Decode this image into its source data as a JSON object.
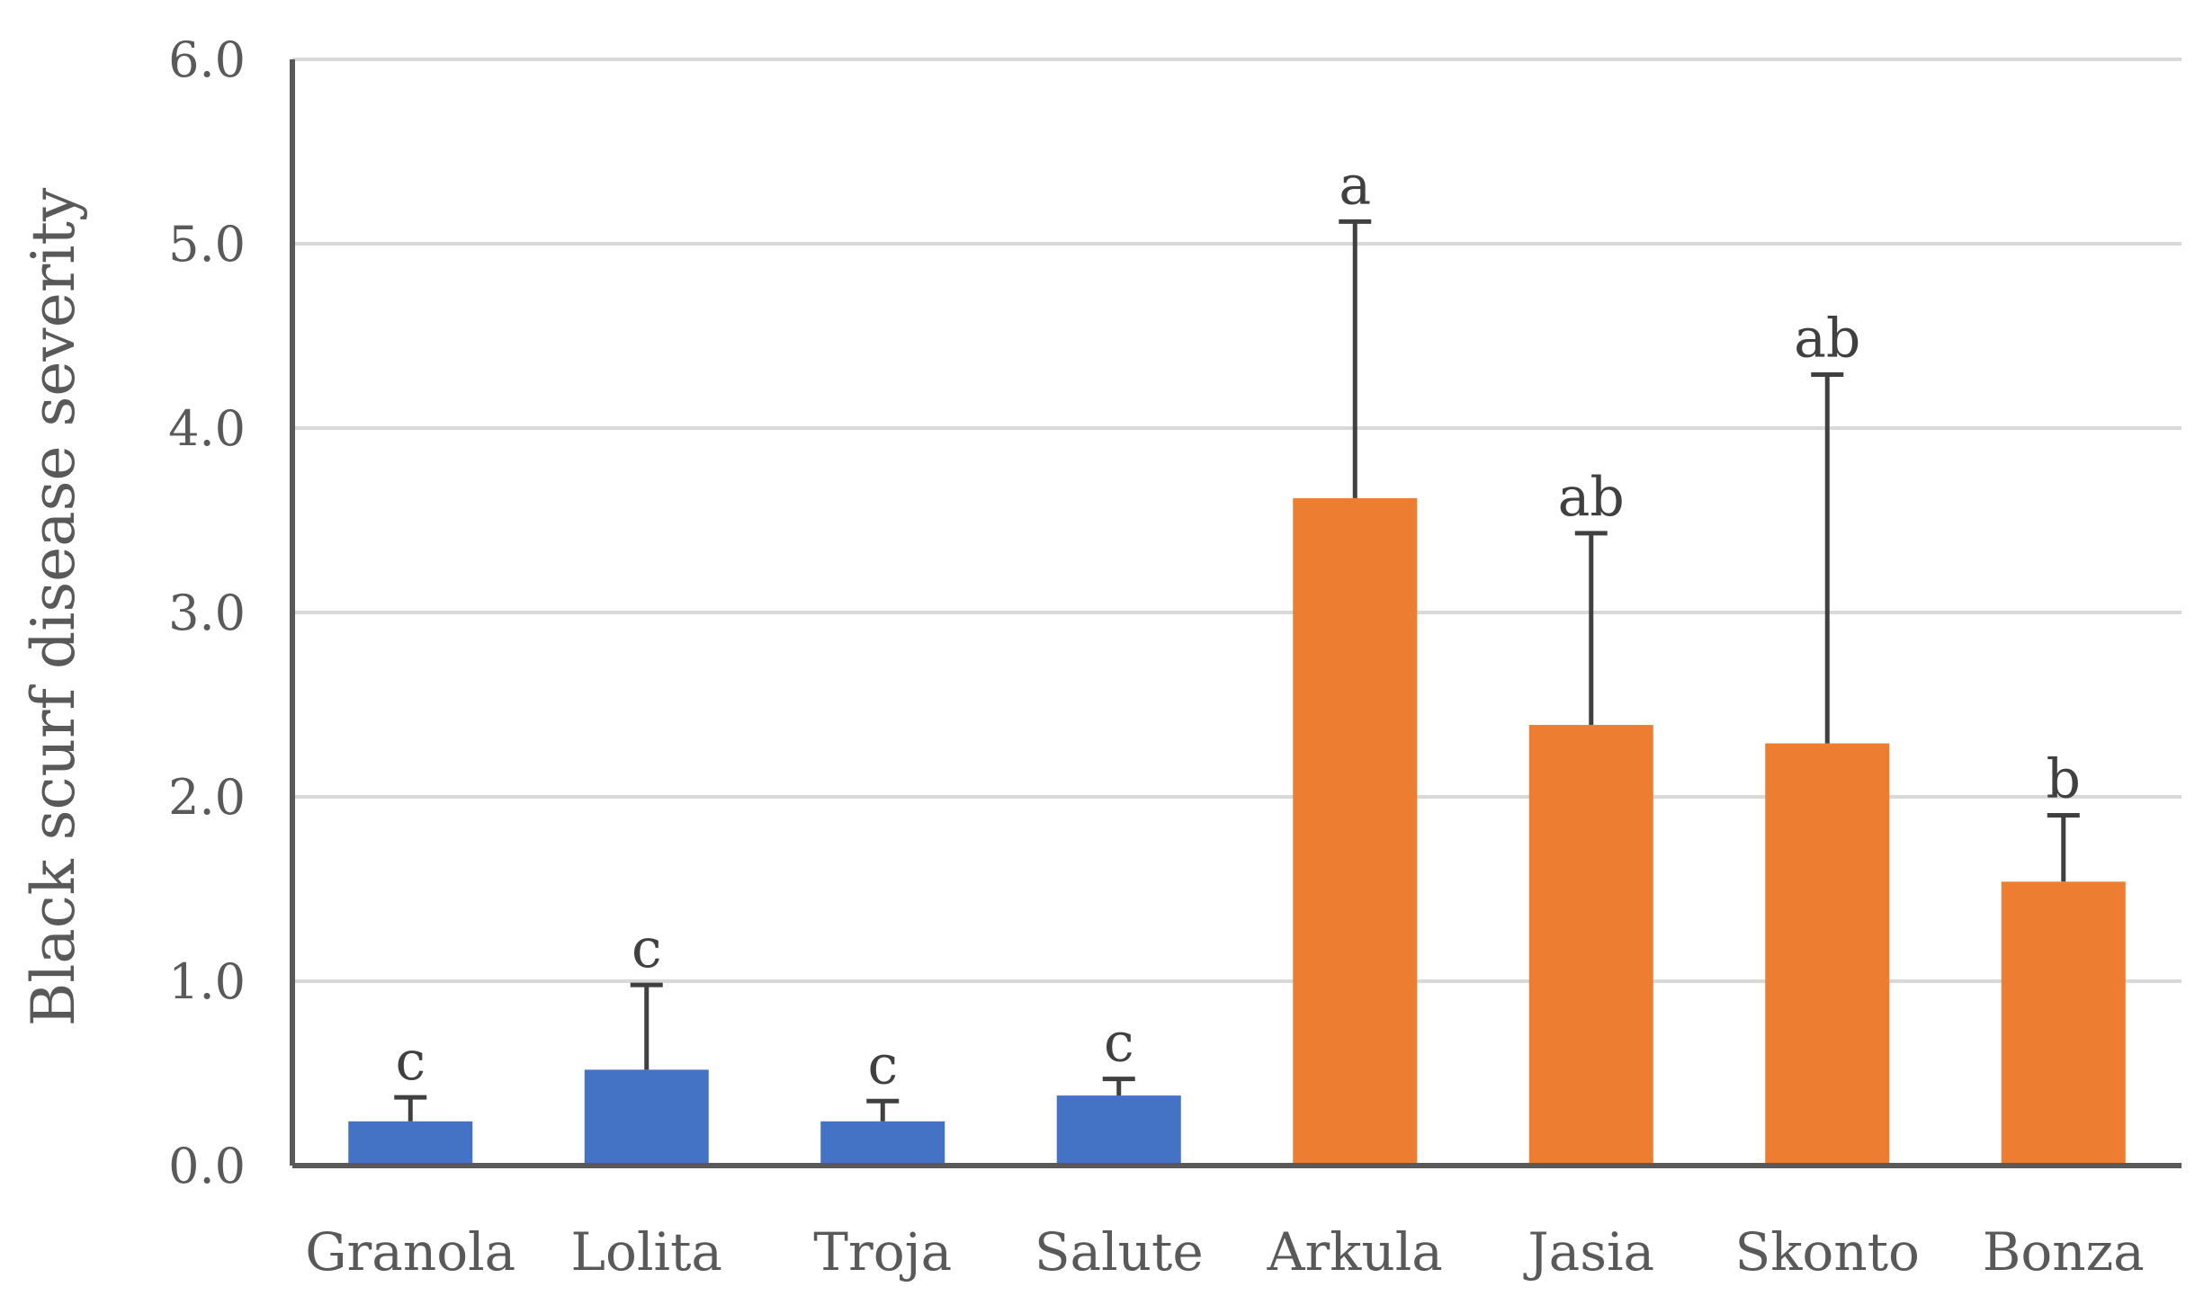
{
  "chart_data": {
    "type": "bar",
    "title": "",
    "xlabel": "",
    "ylabel": "Black scurf disease severity",
    "ylim": [
      0,
      6
    ],
    "yticks": [
      "0.0",
      "1.0",
      "2.0",
      "3.0",
      "4.0",
      "5.0",
      "6.0"
    ],
    "grid": true,
    "legend": "none",
    "categories": [
      "Granola",
      "Lolita",
      "Troja",
      "Salute",
      "Arkula",
      "Jasia",
      "Skonto",
      "Bonza"
    ],
    "values": [
      0.24,
      0.52,
      0.24,
      0.38,
      3.62,
      2.39,
      2.29,
      1.54
    ],
    "error_plus": [
      0.13,
      0.46,
      0.11,
      0.09,
      1.5,
      1.04,
      2.0,
      0.36
    ],
    "significance": [
      "c",
      "c",
      "c",
      "c",
      "a",
      "ab",
      "ab",
      "b"
    ],
    "bar_colors": [
      "#4472c4",
      "#4472c4",
      "#4472c4",
      "#4472c4",
      "#ed7d31",
      "#ed7d31",
      "#ed7d31",
      "#ed7d31"
    ],
    "colors": {
      "blue_bars": "#4472c4",
      "orange_bars": "#ed7d31",
      "gridline": "#d9d9d9",
      "axis": "#595959",
      "error_bar": "#404040"
    }
  }
}
